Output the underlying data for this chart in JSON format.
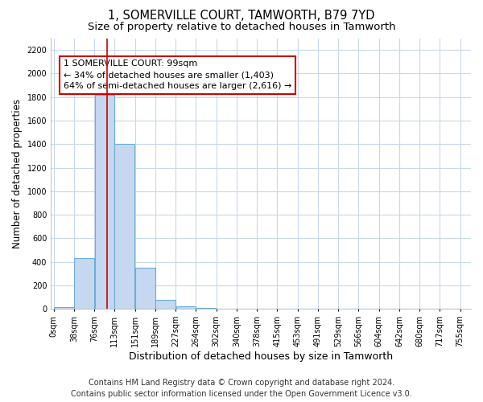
{
  "title": "1, SOMERVILLE COURT, TAMWORTH, B79 7YD",
  "subtitle": "Size of property relative to detached houses in Tamworth",
  "xlabel": "Distribution of detached houses by size in Tamworth",
  "ylabel": "Number of detached properties",
  "footer1": "Contains HM Land Registry data © Crown copyright and database right 2024.",
  "footer2": "Contains public sector information licensed under the Open Government Licence v3.0.",
  "annotation_title": "1 SOMERVILLE COURT: 99sqm",
  "annotation_line1": "← 34% of detached houses are smaller (1,403)",
  "annotation_line2": "64% of semi-detached houses are larger (2,616) →",
  "property_size": 99,
  "bar_left_edges": [
    0,
    38,
    76,
    113,
    151,
    189,
    227,
    264,
    302,
    340,
    378,
    415,
    453,
    491,
    529,
    566,
    604,
    642,
    680,
    717
  ],
  "bar_widths": [
    38,
    38,
    37,
    38,
    38,
    38,
    37,
    38,
    38,
    38,
    37,
    38,
    38,
    38,
    37,
    38,
    38,
    38,
    37,
    38
  ],
  "bar_heights": [
    15,
    430,
    1820,
    1400,
    350,
    80,
    25,
    10,
    0,
    0,
    0,
    0,
    0,
    0,
    0,
    0,
    0,
    0,
    0,
    0
  ],
  "bar_color": "#c5d8f0",
  "bar_edge_color": "#6baed6",
  "red_line_x": 99,
  "red_line_color": "#cc0000",
  "ylim": [
    0,
    2300
  ],
  "yticks": [
    0,
    200,
    400,
    600,
    800,
    1000,
    1200,
    1400,
    1600,
    1800,
    2000,
    2200
  ],
  "xtick_labels": [
    "0sqm",
    "38sqm",
    "76sqm",
    "113sqm",
    "151sqm",
    "189sqm",
    "227sqm",
    "264sqm",
    "302sqm",
    "340sqm",
    "378sqm",
    "415sqm",
    "453sqm",
    "491sqm",
    "529sqm",
    "566sqm",
    "604sqm",
    "642sqm",
    "680sqm",
    "717sqm",
    "755sqm"
  ],
  "xtick_positions": [
    0,
    38,
    76,
    113,
    151,
    189,
    227,
    264,
    302,
    340,
    378,
    415,
    453,
    491,
    529,
    566,
    604,
    642,
    680,
    717,
    755
  ],
  "grid_color": "#c8d8ec",
  "bg_color": "#ffffff",
  "annotation_box_color": "#ffffff",
  "annotation_box_edge": "#cc0000",
  "title_fontsize": 10.5,
  "subtitle_fontsize": 9.5,
  "tick_fontsize": 7,
  "ylabel_fontsize": 8.5,
  "xlabel_fontsize": 9,
  "footer_fontsize": 7,
  "annotation_fontsize": 8
}
